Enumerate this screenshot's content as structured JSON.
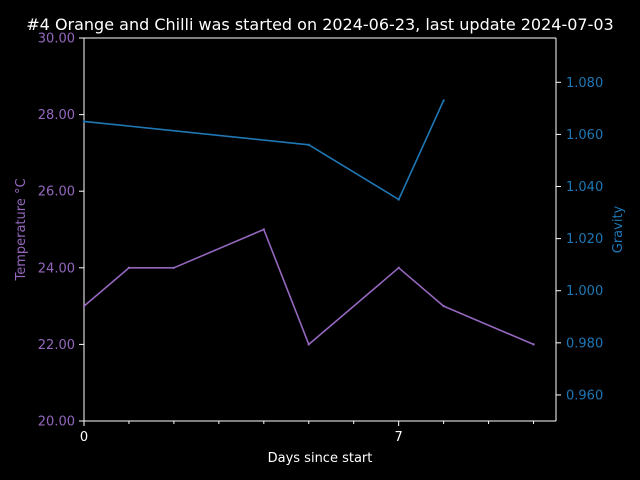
{
  "colors": {
    "background": "#000000",
    "foreground": "#ffffff",
    "temperature": "#9467bd",
    "gravity": "#1f77b4"
  },
  "chart_data": {
    "type": "line",
    "title": "#4 Orange and Chilli was started on 2024-06-23, last update 2024-07-03",
    "xlabel": "Days since start",
    "ylabel_left": "Temperature °C",
    "ylabel_right": "Gravity",
    "xlim": [
      0,
      10.5
    ],
    "x_ticks": [
      0,
      7
    ],
    "x_tick_labels": [
      "0",
      "7"
    ],
    "x_minor_ticks": [
      1,
      2,
      3,
      4,
      5,
      6,
      8,
      9,
      10
    ],
    "ylim_left": [
      20,
      30
    ],
    "y_ticks_left": [
      "20.00",
      "22.00",
      "24.00",
      "26.00",
      "28.00",
      "30.00"
    ],
    "ylim_right": [
      0.95,
      1.097
    ],
    "y_ticks_right": [
      "0.960",
      "0.980",
      "1.000",
      "1.020",
      "1.040",
      "1.060",
      "1.080"
    ],
    "grid": false,
    "legend": "none",
    "series": [
      {
        "axis": "left",
        "x": [
          0,
          1,
          2,
          4,
          5,
          7,
          8,
          10
        ],
        "values": [
          23.0,
          24.0,
          24.0,
          25.0,
          22.0,
          24.0,
          23.0,
          22.0
        ]
      },
      {
        "axis": "right",
        "x": [
          0,
          5,
          7,
          8
        ],
        "values": [
          1.065,
          1.056,
          1.035,
          1.073
        ]
      }
    ]
  }
}
